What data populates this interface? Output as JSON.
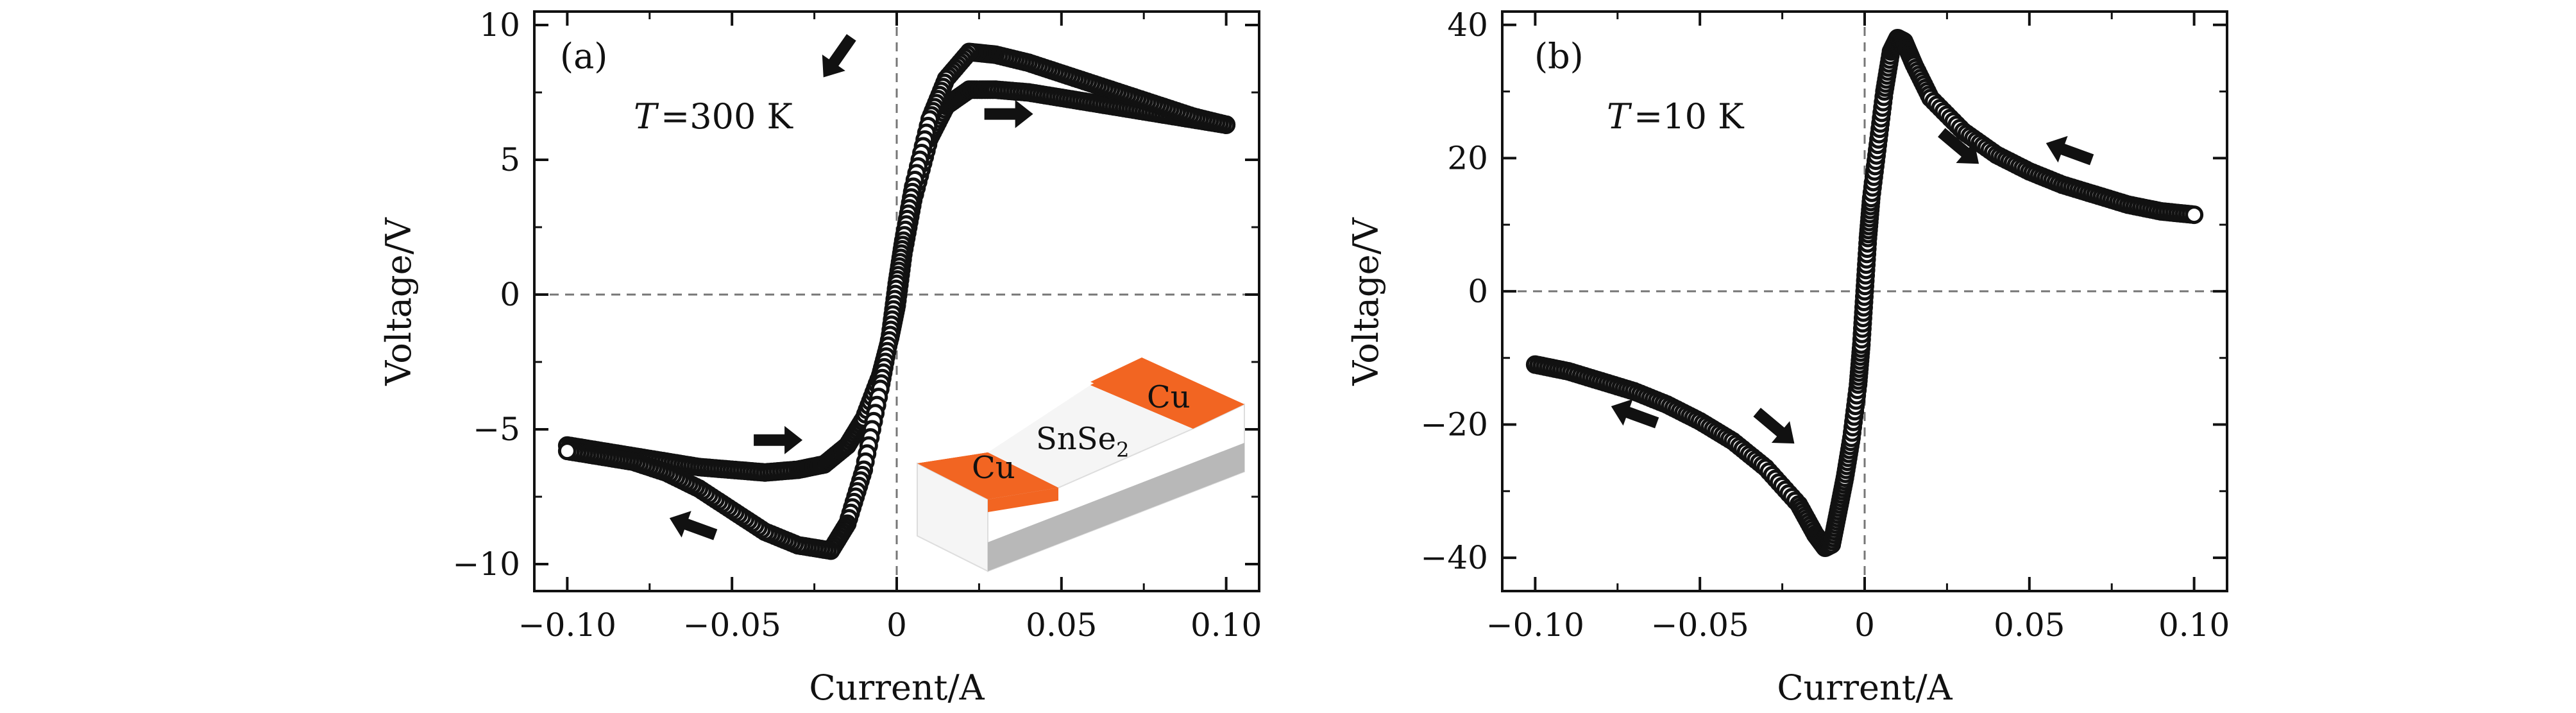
{
  "chart_data": [
    {
      "type": "scatter",
      "panel": "(a)",
      "annotation": "T = 300 K",
      "xlabel": "Current/A",
      "ylabel": "Voltage/V",
      "xlim": [
        -0.11,
        0.11
      ],
      "ylim": [
        -11,
        10.5
      ],
      "xticks": [
        -0.1,
        -0.05,
        0,
        0.05,
        0.1
      ],
      "xtick_labels": [
        "−0.10",
        "−0.05",
        "0",
        "0.05",
        "0.10"
      ],
      "yticks": [
        -10,
        -5,
        0,
        5,
        10
      ],
      "ytick_labels": [
        "−10",
        "−5",
        "0",
        "5",
        "10"
      ],
      "reference_lines": {
        "x": 0,
        "y": 0
      },
      "series": [
        {
          "x": [
            -0.1,
            -0.09,
            -0.08,
            -0.07,
            -0.06,
            -0.05,
            -0.04,
            -0.03,
            -0.022,
            -0.015,
            -0.01,
            -0.005,
            -0.002,
            0.0,
            0.002,
            0.005,
            0.01,
            0.015,
            0.022,
            0.03,
            0.04,
            0.05,
            0.06,
            0.07,
            0.08,
            0.09,
            0.1
          ],
          "y": [
            -5.6,
            -5.8,
            -6.0,
            -6.2,
            -6.4,
            -6.5,
            -6.6,
            -6.5,
            -6.3,
            -5.6,
            -4.6,
            -3.0,
            -1.6,
            -0.4,
            1.5,
            3.5,
            5.8,
            7.0,
            7.6,
            7.6,
            7.5,
            7.3,
            7.1,
            6.9,
            6.7,
            6.5,
            6.3
          ]
        },
        {
          "x": [
            0.1,
            0.09,
            0.08,
            0.07,
            0.06,
            0.05,
            0.04,
            0.03,
            0.022,
            0.015,
            0.01,
            0.005,
            0.002,
            0.0,
            -0.002,
            -0.005,
            -0.01,
            -0.015,
            -0.02,
            -0.03,
            -0.04,
            -0.05,
            -0.06,
            -0.07,
            -0.08,
            -0.09,
            -0.1
          ],
          "y": [
            6.3,
            6.6,
            7.0,
            7.4,
            7.8,
            8.2,
            8.6,
            8.9,
            9.0,
            8.0,
            6.5,
            4.0,
            2.0,
            0.4,
            -1.5,
            -3.5,
            -6.5,
            -8.5,
            -9.5,
            -9.3,
            -8.8,
            -8.0,
            -7.2,
            -6.6,
            -6.2,
            -6.0,
            -5.8
          ]
        }
      ],
      "arrows": [
        {
          "x": -0.018,
          "y": 8.8,
          "direction": "down-left"
        },
        {
          "x": 0.034,
          "y": 6.7,
          "direction": "right"
        },
        {
          "x": -0.036,
          "y": -5.4,
          "direction": "right"
        },
        {
          "x": -0.062,
          "y": -8.6,
          "direction": "up-left"
        }
      ],
      "inset": {
        "substrate_label_main": "SnSe",
        "substrate_label_sub": "2",
        "contact_label": "Cu",
        "contact_color": "#f26522"
      }
    },
    {
      "type": "scatter",
      "panel": "(b)",
      "annotation": "T = 10 K",
      "xlabel": "Current/A",
      "ylabel": "Voltage/V",
      "xlim": [
        -0.11,
        0.11
      ],
      "ylim": [
        -45,
        42
      ],
      "xticks": [
        -0.1,
        -0.05,
        0,
        0.05,
        0.1
      ],
      "xtick_labels": [
        "−0.10",
        "−0.05",
        "0",
        "0.05",
        "0.10"
      ],
      "yticks": [
        -40,
        -20,
        0,
        20,
        40
      ],
      "ytick_labels": [
        "−40",
        "−20",
        "0",
        "20",
        "40"
      ],
      "reference_lines": {
        "x": 0,
        "y": 0
      },
      "series": [
        {
          "x": [
            -0.1,
            -0.09,
            -0.08,
            -0.07,
            -0.06,
            -0.05,
            -0.04,
            -0.03,
            -0.02,
            -0.015,
            -0.012,
            -0.01,
            -0.008,
            -0.006,
            -0.004,
            -0.002,
            -0.001,
            0.0,
            0.001,
            0.002,
            0.004,
            0.006,
            0.008,
            0.01,
            0.012,
            0.015,
            0.02,
            0.03,
            0.04,
            0.05,
            0.06,
            0.07,
            0.08,
            0.09,
            0.1
          ],
          "y": [
            -11,
            -12,
            -13.5,
            -15,
            -17,
            -19.5,
            -22.5,
            -26.5,
            -32,
            -36.5,
            -38.5,
            -38,
            -33,
            -28,
            -22,
            -14,
            -8,
            0,
            8,
            14,
            22,
            30,
            36,
            38,
            37.5,
            34,
            29,
            24,
            20.5,
            18,
            16,
            14.5,
            13,
            12,
            11.5
          ]
        }
      ],
      "arrows": [
        {
          "x": 0.029,
          "y": 21.5,
          "direction": "down-right"
        },
        {
          "x": 0.062,
          "y": 21,
          "direction": "up-left"
        },
        {
          "x": -0.027,
          "y": -20.5,
          "direction": "down-right"
        },
        {
          "x": -0.07,
          "y": -18.5,
          "direction": "up-left"
        }
      ]
    }
  ]
}
